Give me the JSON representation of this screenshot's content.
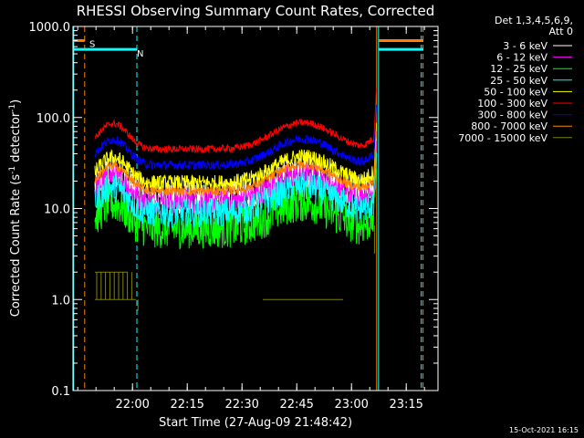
{
  "chart_data": {
    "type": "line",
    "title": "RHESSI Observing Summary Count Rates, Corrected",
    "xlabel": "Start Time (27-Aug-09 21:48:42)",
    "ylabel_prefix": "Corrected Count Rate (s",
    "ylabel_sup": "-1",
    "ylabel_suffix": " detector",
    "ylabel_end": ")",
    "y_scale": "log",
    "ylim": [
      0.1,
      1000
    ],
    "y_ticks": [
      "0.1",
      "1.0",
      "10.0",
      "100.0",
      "1000.0"
    ],
    "x_unit": "minutes from 21:48:42",
    "xlim": [
      -5,
      95
    ],
    "x_ticks": [
      {
        "x": 11.3,
        "label": "22:00"
      },
      {
        "x": 26.3,
        "label": "22:15"
      },
      {
        "x": 41.3,
        "label": "22:30"
      },
      {
        "x": 56.3,
        "label": "22:45"
      },
      {
        "x": 71.3,
        "label": "23:00"
      },
      {
        "x": 86.3,
        "label": "23:15"
      }
    ],
    "legend_header": [
      "Det 1,3,4,5,6,9,",
      "Att 0"
    ],
    "legend_position": "right",
    "series": [
      {
        "name": "3 - 6 keV",
        "color": "#ffffff",
        "base": 13,
        "noise": 0.18
      },
      {
        "name": "6 - 12 keV",
        "color": "#ff00ff",
        "base": 12,
        "noise": 0.14
      },
      {
        "name": "12 - 25 keV",
        "color": "#00ff00",
        "base": 6,
        "noise": 0.22
      },
      {
        "name": "25 - 50 keV",
        "color": "#00ffff",
        "base": 9,
        "noise": 0.16
      },
      {
        "name": "50 - 100 keV",
        "color": "#ffff00",
        "base": 19,
        "noise": 0.09
      },
      {
        "name": "100 - 300 keV",
        "color": "#ff0000",
        "base": 45,
        "noise": 0.04
      },
      {
        "name": "300 - 800 keV",
        "color": "#0000ff",
        "base": 30,
        "noise": 0.05
      },
      {
        "name": "800 - 7000 keV",
        "color": "#ff8000",
        "base": 15.5,
        "noise": 0.05
      },
      {
        "name": "7000 - 15000 keV",
        "color": "#808000",
        "base": 1,
        "noise": 0.0
      }
    ],
    "markers": [
      {
        "label": "S",
        "color": "#ff8000",
        "x": -0.5,
        "level": 700
      },
      {
        "label": "N",
        "color": "#00ffff",
        "x": 12.5,
        "level": 560
      }
    ],
    "timestamp": "15-Oct-2021 16:15"
  }
}
